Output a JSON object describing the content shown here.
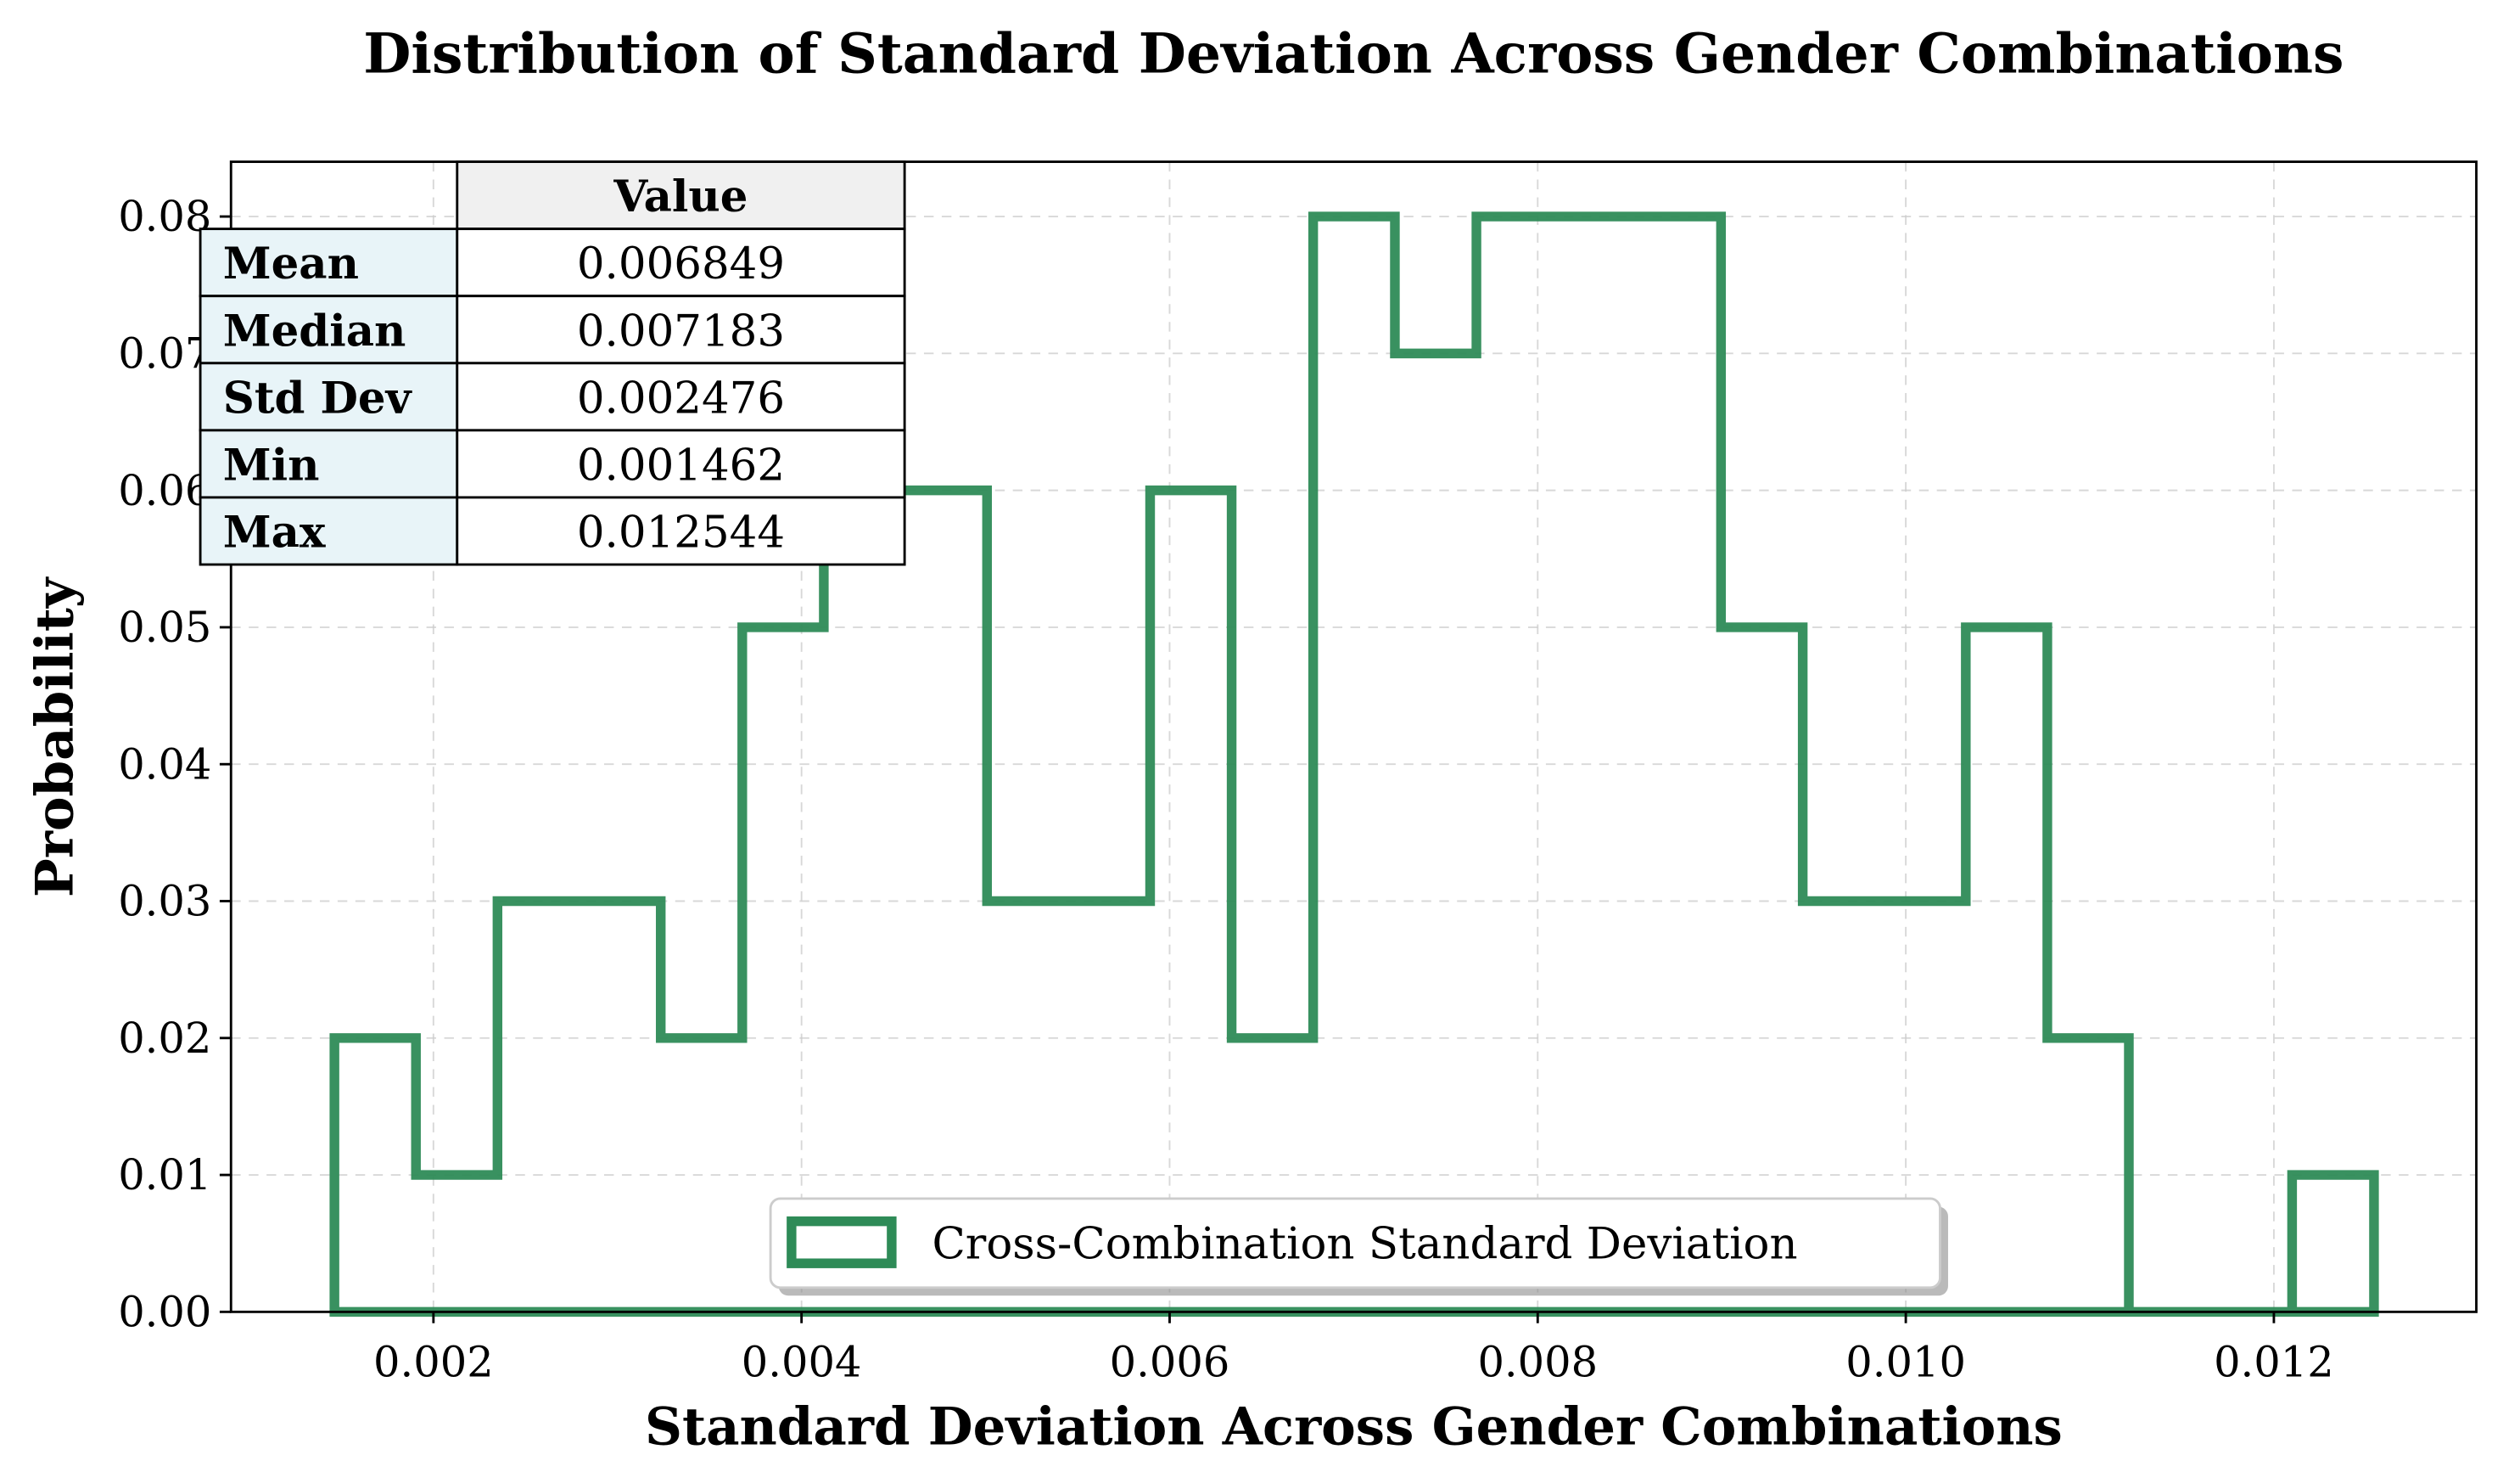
{
  "chart_data": {
    "type": "histogram-step",
    "title": "Distribution of Standard Deviation Across Gender Combinations",
    "xlabel": "Standard Deviation Across Gender Combinations",
    "ylabel": "Probability",
    "xlim": [
      0.0009,
      0.0131
    ],
    "ylim": [
      0.0,
      0.084
    ],
    "xticks": [
      0.002,
      0.004,
      0.006,
      0.008,
      0.01,
      0.012
    ],
    "xtick_labels": [
      "0.002",
      "0.004",
      "0.006",
      "0.008",
      "0.010",
      "0.012"
    ],
    "yticks": [
      0.0,
      0.01,
      0.02,
      0.03,
      0.04,
      0.05,
      0.06,
      0.07,
      0.08
    ],
    "ytick_labels": [
      "0.00",
      "0.01",
      "0.02",
      "0.03",
      "0.04",
      "0.05",
      "0.06",
      "0.07",
      "0.08"
    ],
    "grid": true,
    "legend_position": "lower-center",
    "series": [
      {
        "name": "Cross-Combination Standard Deviation",
        "color": "#2e8b57",
        "bin_edges": [
          0.001462,
          0.001905,
          0.002348,
          0.002792,
          0.003235,
          0.003678,
          0.004121,
          0.004564,
          0.005008,
          0.005451,
          0.005894,
          0.006337,
          0.00678,
          0.007224,
          0.007667,
          0.00811,
          0.008553,
          0.008996,
          0.00944,
          0.009883,
          0.010326,
          0.010769,
          0.011212,
          0.011656,
          0.012099,
          0.012544
        ],
        "values": [
          0.02,
          0.01,
          0.03,
          0.03,
          0.02,
          0.05,
          0.06,
          0.06,
          0.03,
          0.03,
          0.06,
          0.02,
          0.08,
          0.07,
          0.08,
          0.08,
          0.08,
          0.05,
          0.03,
          0.03,
          0.05,
          0.02,
          0.0,
          0.0,
          0.01
        ]
      }
    ],
    "stats_table": {
      "header": [
        "",
        "Value"
      ],
      "rows": [
        {
          "label": "Mean",
          "value": "0.006849"
        },
        {
          "label": "Median",
          "value": "0.007183"
        },
        {
          "label": "Std Dev",
          "value": "0.002476"
        },
        {
          "label": "Min",
          "value": "0.001462"
        },
        {
          "label": "Max",
          "value": "0.012544"
        }
      ]
    }
  }
}
